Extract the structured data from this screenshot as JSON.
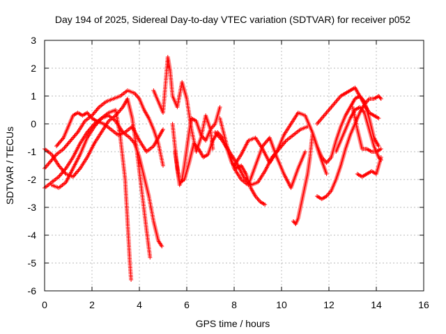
{
  "chart_data": {
    "type": "scatter",
    "title": "Day 194 of 2025, Sidereal Day-to-day VTEC variation (SDTVAR) for receiver p052",
    "xlabel": "GPS time / hours",
    "ylabel": "SDTVAR / TECUs",
    "xlim": [
      0,
      16
    ],
    "ylim": [
      -6,
      3
    ],
    "xticks": [
      0,
      2,
      4,
      6,
      8,
      10,
      12,
      14,
      16
    ],
    "yticks": [
      -6,
      -5,
      -4,
      -3,
      -2,
      -1,
      0,
      1,
      2,
      3
    ],
    "xtick_labels": [
      "0",
      "2",
      "4",
      "6",
      "8",
      "10",
      "12",
      "14",
      "16"
    ],
    "ytick_labels": [
      "-6",
      "-5",
      "-4",
      "-3",
      "-2",
      "-1",
      "0",
      "1",
      "2",
      "3"
    ],
    "grid": true,
    "marker": "+",
    "color": "#ff0000",
    "series": [
      {
        "name": "track-1",
        "x": [
          0.0,
          0.3,
          0.6,
          0.9,
          1.2,
          1.5,
          1.8,
          2.1,
          2.4,
          2.7,
          3.0,
          3.2,
          3.4,
          3.5,
          3.6,
          3.65
        ],
        "y": [
          -2.3,
          -2.1,
          -1.9,
          -1.6,
          -1.2,
          -0.7,
          -0.3,
          0.0,
          0.2,
          0.4,
          0.5,
          -0.5,
          -2.0,
          -3.5,
          -5.0,
          -5.6
        ]
      },
      {
        "name": "track-2",
        "x": [
          0.0,
          0.2,
          0.5,
          0.8,
          1.1,
          1.4,
          1.7,
          2.0,
          2.3,
          2.6,
          2.9,
          3.2,
          3.5,
          3.8,
          4.0,
          4.2,
          4.4,
          4.6,
          4.8,
          5.0
        ],
        "y": [
          -1.6,
          -1.4,
          -1.1,
          -0.9,
          -0.6,
          -0.3,
          0.1,
          0.3,
          0.6,
          0.8,
          0.9,
          1.0,
          1.2,
          1.1,
          0.9,
          0.5,
          0.2,
          -0.2,
          -0.7,
          -1.5
        ]
      },
      {
        "name": "track-3",
        "x": [
          0.0,
          0.3,
          0.6,
          0.9,
          1.2,
          1.5,
          1.8,
          2.1,
          2.4,
          2.7,
          3.0,
          3.3,
          3.5,
          3.7,
          3.9,
          4.1,
          4.3,
          4.45
        ],
        "y": [
          -0.9,
          -1.1,
          -1.5,
          -1.8,
          -1.9,
          -1.6,
          -1.2,
          -0.7,
          -0.3,
          0.1,
          0.3,
          0.6,
          0.9,
          0.2,
          -1.0,
          -2.4,
          -3.8,
          -4.8
        ]
      },
      {
        "name": "track-4",
        "x": [
          0.3,
          0.6,
          0.9,
          1.2,
          1.5,
          1.8,
          2.1,
          2.4,
          2.7,
          3.0,
          3.3,
          3.6,
          3.8,
          4.0,
          4.2,
          4.4,
          4.6,
          4.8,
          4.95
        ],
        "y": [
          -2.2,
          -2.3,
          -2.1,
          -1.6,
          -1.1,
          -0.5,
          -0.1,
          0.2,
          0.3,
          0.1,
          -0.3,
          -0.5,
          -0.7,
          -1.2,
          -1.9,
          -2.6,
          -3.5,
          -4.2,
          -4.4
        ]
      },
      {
        "name": "track-5",
        "x": [
          0.5,
          0.8,
          1.0,
          1.2,
          1.4,
          1.6,
          1.8,
          2.0,
          2.2,
          2.5,
          2.8,
          3.1,
          3.4,
          3.7,
          4.0,
          4.3,
          4.6,
          4.8,
          5.0
        ],
        "y": [
          -0.8,
          -0.5,
          -0.1,
          0.3,
          0.4,
          0.3,
          0.4,
          0.2,
          0.1,
          0.0,
          -0.2,
          -0.4,
          -0.3,
          -0.1,
          -0.6,
          -1.0,
          -0.8,
          -0.5,
          -0.2
        ]
      },
      {
        "name": "track-6",
        "x": [
          4.6,
          4.8,
          5.0,
          5.2,
          5.3,
          5.4,
          5.6,
          5.8,
          6.0,
          6.2,
          6.4,
          6.6,
          6.8,
          7.0,
          7.1
        ],
        "y": [
          1.2,
          0.8,
          0.4,
          2.4,
          1.9,
          1.0,
          0.6,
          1.5,
          0.9,
          -0.2,
          -1.0,
          -0.5,
          0.3,
          -0.2,
          -0.9
        ]
      },
      {
        "name": "track-7",
        "x": [
          5.4,
          5.5,
          5.6,
          5.7,
          5.8,
          5.9,
          6.0,
          6.1,
          6.2,
          6.4,
          6.6,
          6.8,
          7.0,
          7.2,
          7.4
        ],
        "y": [
          0.0,
          -0.8,
          -1.6,
          -2.2,
          -2.0,
          -1.5,
          -0.9,
          -0.3,
          0.2,
          0.1,
          -0.4,
          -0.6,
          -0.2,
          0.0,
          0.6
        ]
      },
      {
        "name": "track-8",
        "x": [
          5.5,
          5.7,
          5.9,
          6.1,
          6.3,
          6.5,
          6.7,
          6.9,
          7.1,
          7.3,
          7.5,
          7.7,
          7.9,
          8.1,
          8.3,
          8.5,
          8.7,
          8.9,
          9.1,
          9.3
        ],
        "y": [
          -1.0,
          -2.1,
          -2.0,
          -1.4,
          -0.7,
          -0.9,
          -1.2,
          -1.1,
          -0.6,
          -0.3,
          -0.5,
          -0.9,
          -1.4,
          -1.6,
          -1.5,
          -1.8,
          -2.3,
          -2.6,
          -2.8,
          -2.9
        ]
      },
      {
        "name": "track-9",
        "x": [
          7.2,
          7.5,
          7.8,
          8.1,
          8.4,
          8.7,
          9.0,
          9.3,
          9.6,
          9.9,
          10.2,
          10.5,
          10.8,
          11.1
        ],
        "y": [
          -0.3,
          -0.6,
          -1.0,
          -1.4,
          -1.9,
          -2.2,
          -2.1,
          -1.7,
          -1.2,
          -0.9,
          -0.6,
          -0.4,
          -0.2,
          -0.1
        ]
      },
      {
        "name": "track-10",
        "x": [
          7.4,
          7.7,
          8.0,
          8.3,
          8.6,
          8.9,
          9.2,
          9.5,
          9.8,
          10.1,
          10.4,
          10.7,
          11.0
        ],
        "y": [
          0.2,
          -0.8,
          -1.6,
          -2.0,
          -2.2,
          -1.5,
          -0.8,
          -0.5,
          -1.2,
          -1.8,
          -2.3,
          -1.6,
          -1.0
        ]
      },
      {
        "name": "track-11",
        "x": [
          8.0,
          8.3,
          8.6,
          8.9,
          9.2,
          9.5,
          9.8,
          10.1,
          10.4,
          10.7,
          11.0,
          11.3,
          11.6,
          11.9
        ],
        "y": [
          -1.5,
          -1.1,
          -0.6,
          -0.5,
          -0.9,
          -1.4,
          -1.0,
          -0.4,
          0.0,
          0.4,
          0.3,
          -0.3,
          -1.1,
          -1.8
        ]
      },
      {
        "name": "track-12",
        "x": [
          10.5,
          10.6,
          10.7,
          10.8,
          10.9,
          11.0,
          11.1,
          11.2,
          11.3
        ],
        "y": [
          -3.5,
          -3.6,
          -3.4,
          -3.0,
          -2.6,
          -2.2,
          -1.8,
          -1.2,
          -0.4
        ]
      },
      {
        "name": "track-13",
        "x": [
          11.5,
          11.7,
          11.9,
          12.1,
          12.3,
          12.5,
          12.7,
          12.9,
          13.1,
          13.3,
          13.5,
          13.7,
          13.9,
          14.1
        ],
        "y": [
          0.0,
          0.2,
          0.4,
          0.6,
          0.8,
          1.0,
          1.1,
          1.2,
          1.3,
          1.0,
          0.7,
          0.4,
          0.3,
          0.2
        ]
      },
      {
        "name": "track-14",
        "x": [
          11.3,
          11.5,
          11.7,
          11.9,
          12.1,
          12.3,
          12.5,
          12.7,
          12.9,
          13.1,
          13.3,
          13.5,
          13.7,
          13.9,
          14.1
        ],
        "y": [
          -0.3,
          -0.8,
          -1.2,
          -1.4,
          -1.2,
          -0.6,
          -0.1,
          0.3,
          0.6,
          0.9,
          1.0,
          0.8,
          0.2,
          -0.5,
          -0.8
        ]
      },
      {
        "name": "track-15",
        "x": [
          11.5,
          11.7,
          11.9,
          12.1,
          12.3,
          12.5,
          12.7,
          12.9,
          13.1,
          13.3,
          13.5,
          13.7,
          13.9,
          14.1,
          14.2
        ],
        "y": [
          -2.6,
          -2.7,
          -2.6,
          -2.4,
          -2.0,
          -1.5,
          -0.9,
          -0.4,
          0.0,
          0.4,
          0.7,
          0.9,
          0.9,
          1.0,
          0.9
        ]
      },
      {
        "name": "track-16",
        "x": [
          12.3,
          12.5,
          12.7,
          12.9,
          13.1,
          13.3,
          13.5,
          13.7,
          13.9,
          14.1,
          14.2
        ],
        "y": [
          -1.0,
          -0.6,
          -0.2,
          0.2,
          0.5,
          0.6,
          0.4,
          -0.2,
          -0.8,
          -1.2,
          -1.3
        ]
      },
      {
        "name": "track-17",
        "x": [
          13.2,
          13.4,
          13.6,
          13.8,
          14.0,
          14.1,
          14.2
        ],
        "y": [
          -1.8,
          -1.9,
          -1.8,
          -1.7,
          -1.8,
          -1.5,
          -1.2
        ]
      },
      {
        "name": "track-18",
        "x": [
          13.0,
          13.2,
          13.4,
          13.6,
          13.8,
          14.0,
          14.2
        ],
        "y": [
          0.6,
          -0.2,
          -0.9,
          -0.9,
          -1.0,
          -1.0,
          -0.9
        ]
      }
    ]
  }
}
